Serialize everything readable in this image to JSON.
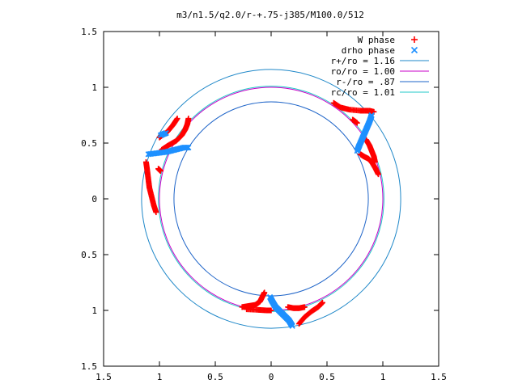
{
  "chart_data": {
    "type": "scatter",
    "title": "m3/n1.5/q2.0/r-+.75-j385/M100.0/512",
    "xlabel": "",
    "ylabel": "",
    "xlim": [
      -1.5,
      1.5
    ],
    "ylim": [
      -1.5,
      1.5
    ],
    "x_ticks": [
      "1.5",
      "1",
      "0.5",
      "0",
      "0.5",
      "1",
      "1.5"
    ],
    "x_tick_values": [
      -1.5,
      -1,
      -0.5,
      0,
      0.5,
      1,
      1.5
    ],
    "y_ticks": [
      "1.5",
      "1",
      "0.5",
      "0",
      "0.5",
      "1",
      "1.5"
    ],
    "y_tick_values": [
      1.5,
      1,
      0.5,
      0,
      -0.5,
      -1,
      -1.5
    ],
    "grid": false,
    "legend_position": "top-right",
    "legend": [
      {
        "label": "W phase",
        "kind": "plus",
        "color": "#ff0000"
      },
      {
        "label": "drho phase",
        "kind": "cross",
        "color": "#1e90ff"
      },
      {
        "label": "r+/ro = 1.16",
        "kind": "line",
        "color": "#1e87c8"
      },
      {
        "label": "ro/ro = 1.00",
        "kind": "line",
        "color": "#c800c8"
      },
      {
        "label": "r-/ro = .87",
        "kind": "line",
        "color": "#1e64c8"
      },
      {
        "label": "rc/ro = 1.01",
        "kind": "line",
        "color": "#20c8c8"
      }
    ],
    "circles": [
      {
        "name": "r+/ro = 1.16",
        "r": 1.16,
        "color": "#1e87c8"
      },
      {
        "name": "ro/ro = 1.00",
        "r": 1.0,
        "color": "#c800c8"
      },
      {
        "name": "r-/ro = .87",
        "r": 0.87,
        "color": "#1e64c8"
      },
      {
        "name": "rc/ro = 1.01",
        "r": 1.01,
        "color": "#20c8c8"
      }
    ],
    "series": [
      {
        "name": "W phase",
        "marker": "plus",
        "color": "#ff0000",
        "segments": [
          [
            [
              -0.74,
              0.72
            ],
            [
              -0.75,
              0.67
            ],
            [
              -0.77,
              0.62
            ],
            [
              -0.8,
              0.57
            ],
            [
              -0.85,
              0.52
            ],
            [
              -0.92,
              0.48
            ],
            [
              -0.98,
              0.44
            ]
          ],
          [
            [
              -0.84,
              0.72
            ],
            [
              -0.88,
              0.66
            ],
            [
              -0.93,
              0.6
            ],
            [
              -1.0,
              0.55
            ]
          ],
          [
            [
              -1.12,
              0.33
            ],
            [
              -1.11,
              0.26
            ],
            [
              -1.1,
              0.18
            ],
            [
              -1.09,
              0.1
            ],
            [
              -1.07,
              0.02
            ],
            [
              -1.05,
              -0.06
            ],
            [
              -1.03,
              -0.12
            ]
          ],
          [
            [
              -1.01,
              0.27
            ],
            [
              -0.99,
              0.25
            ]
          ],
          [
            [
              0.56,
              0.86
            ],
            [
              0.62,
              0.82
            ],
            [
              0.7,
              0.8
            ],
            [
              0.8,
              0.79
            ],
            [
              0.88,
              0.79
            ],
            [
              0.92,
              0.78
            ]
          ],
          [
            [
              0.73,
              0.71
            ],
            [
              0.77,
              0.68
            ]
          ],
          [
            [
              0.8,
              0.4
            ],
            [
              0.83,
              0.38
            ],
            [
              0.87,
              0.36
            ],
            [
              0.9,
              0.33
            ],
            [
              0.93,
              0.28
            ],
            [
              0.96,
              0.22
            ]
          ],
          [
            [
              0.85,
              0.53
            ],
            [
              0.88,
              0.48
            ],
            [
              0.9,
              0.43
            ],
            [
              0.92,
              0.38
            ],
            [
              0.93,
              0.33
            ]
          ],
          [
            [
              -0.26,
              -0.97
            ],
            [
              -0.2,
              -0.96
            ],
            [
              -0.14,
              -0.95
            ],
            [
              -0.1,
              -0.92
            ],
            [
              -0.08,
              -0.88
            ],
            [
              -0.06,
              -0.84
            ]
          ],
          [
            [
              -0.22,
              -0.99
            ],
            [
              -0.12,
              -0.995
            ],
            [
              -0.04,
              -1.0
            ],
            [
              0.0,
              -1.0
            ]
          ],
          [
            [
              0.25,
              -1.12
            ],
            [
              0.3,
              -1.06
            ],
            [
              0.36,
              -1.01
            ],
            [
              0.42,
              -0.97
            ],
            [
              0.46,
              -0.93
            ]
          ],
          [
            [
              0.15,
              -0.97
            ],
            [
              0.2,
              -0.98
            ],
            [
              0.25,
              -0.98
            ],
            [
              0.3,
              -0.97
            ]
          ]
        ]
      },
      {
        "name": "drho phase",
        "marker": "cross",
        "color": "#1e90ff",
        "segments": [
          [
            [
              -1.1,
              0.4
            ],
            [
              -1.02,
              0.41
            ],
            [
              -0.94,
              0.42
            ],
            [
              -0.86,
              0.44
            ],
            [
              -0.78,
              0.46
            ],
            [
              -0.74,
              0.46
            ]
          ],
          [
            [
              -0.99,
              0.57
            ],
            [
              -0.94,
              0.59
            ]
          ],
          [
            [
              0.77,
              0.43
            ],
            [
              0.79,
              0.48
            ],
            [
              0.82,
              0.55
            ],
            [
              0.85,
              0.62
            ],
            [
              0.88,
              0.69
            ],
            [
              0.9,
              0.75
            ]
          ],
          [
            [
              -0.01,
              -0.88
            ],
            [
              0.01,
              -0.92
            ],
            [
              0.04,
              -0.97
            ],
            [
              0.08,
              -1.01
            ],
            [
              0.12,
              -1.05
            ],
            [
              0.16,
              -1.09
            ],
            [
              0.19,
              -1.14
            ]
          ]
        ]
      }
    ]
  }
}
